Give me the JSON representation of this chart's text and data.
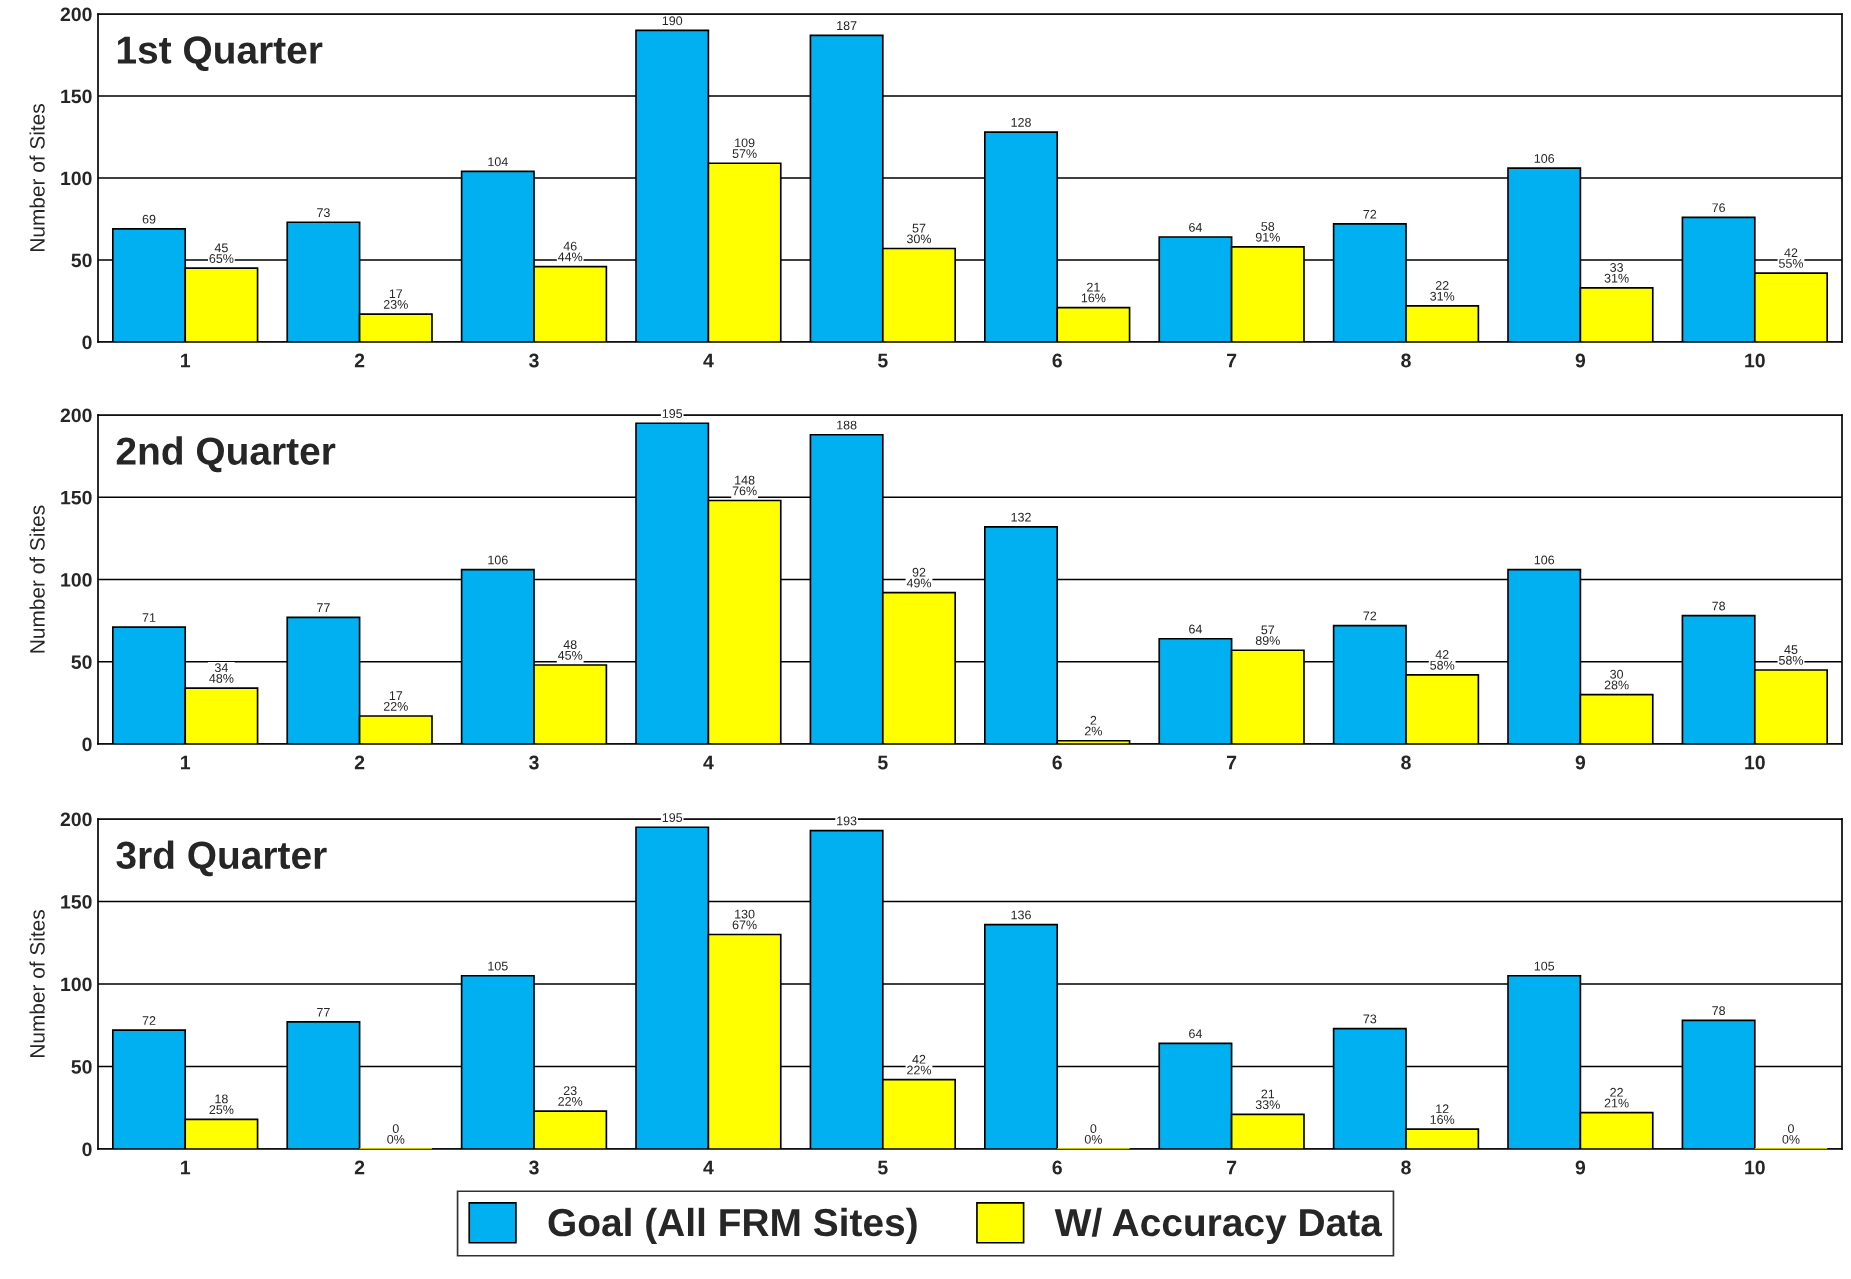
{
  "chart_data": [
    {
      "type": "bar",
      "title": "1st Quarter",
      "ylabel": "Number of Sites",
      "categories": [
        "1",
        "2",
        "3",
        "4",
        "5",
        "6",
        "7",
        "8",
        "9",
        "10"
      ],
      "ylim": [
        0,
        200
      ],
      "yticks": [
        0,
        50,
        100,
        150,
        200
      ],
      "grid": "y",
      "series": [
        {
          "color": "#00b0f0",
          "values": [
            69,
            73,
            104,
            190,
            187,
            128,
            64,
            72,
            106,
            76
          ],
          "value_labels": [
            "69",
            "73",
            "104",
            "190",
            "187",
            "128",
            "64",
            "72",
            "106",
            "76"
          ]
        },
        {
          "color": "#ffff00",
          "values": [
            45,
            17,
            46,
            109,
            57,
            21,
            58,
            22,
            33,
            42
          ],
          "value_labels": [
            "45\n65%",
            "17\n23%",
            "46\n44%",
            "109\n57%",
            "57\n30%",
            "21\n16%",
            "58\n91%",
            "22\n31%",
            "33\n31%",
            "42\n55%"
          ]
        }
      ]
    },
    {
      "type": "bar",
      "title": "2nd Quarter",
      "ylabel": "Number of Sites",
      "categories": [
        "1",
        "2",
        "3",
        "4",
        "5",
        "6",
        "7",
        "8",
        "9",
        "10"
      ],
      "ylim": [
        0,
        200
      ],
      "yticks": [
        0,
        50,
        100,
        150,
        200
      ],
      "grid": "y",
      "series": [
        {
          "color": "#00b0f0",
          "values": [
            71,
            77,
            106,
            195,
            188,
            132,
            64,
            72,
            106,
            78
          ],
          "value_labels": [
            "71",
            "77",
            "106",
            "195",
            "188",
            "132",
            "64",
            "72",
            "106",
            "78"
          ]
        },
        {
          "color": "#ffff00",
          "values": [
            34,
            17,
            48,
            148,
            92,
            2,
            57,
            42,
            30,
            45
          ],
          "value_labels": [
            "34\n48%",
            "17\n22%",
            "48\n45%",
            "148\n76%",
            "92\n49%",
            "2\n2%",
            "57\n89%",
            "42\n58%",
            "30\n28%",
            "45\n58%"
          ]
        }
      ]
    },
    {
      "type": "bar",
      "title": "3rd Quarter",
      "ylabel": "Number of Sites",
      "categories": [
        "1",
        "2",
        "3",
        "4",
        "5",
        "6",
        "7",
        "8",
        "9",
        "10"
      ],
      "ylim": [
        0,
        200
      ],
      "yticks": [
        0,
        50,
        100,
        150,
        200
      ],
      "grid": "y",
      "legend": "bottom",
      "series": [
        {
          "name": "Goal (All FRM Sites)",
          "color": "#00b0f0",
          "values": [
            72,
            77,
            105,
            195,
            193,
            136,
            64,
            73,
            105,
            78
          ],
          "value_labels": [
            "72",
            "77",
            "105",
            "195",
            "193",
            "136",
            "64",
            "73",
            "105",
            "78"
          ]
        },
        {
          "name": "W/ Accuracy Data",
          "color": "#ffff00",
          "values": [
            18,
            0,
            23,
            130,
            42,
            0,
            21,
            12,
            22,
            0
          ],
          "value_labels": [
            "18\n25%",
            "0\n0%",
            "23\n22%",
            "130\n67%",
            "42\n22%",
            "0\n0%",
            "21\n33%",
            "12\n16%",
            "22\n21%",
            "0\n0%"
          ]
        }
      ]
    }
  ]
}
